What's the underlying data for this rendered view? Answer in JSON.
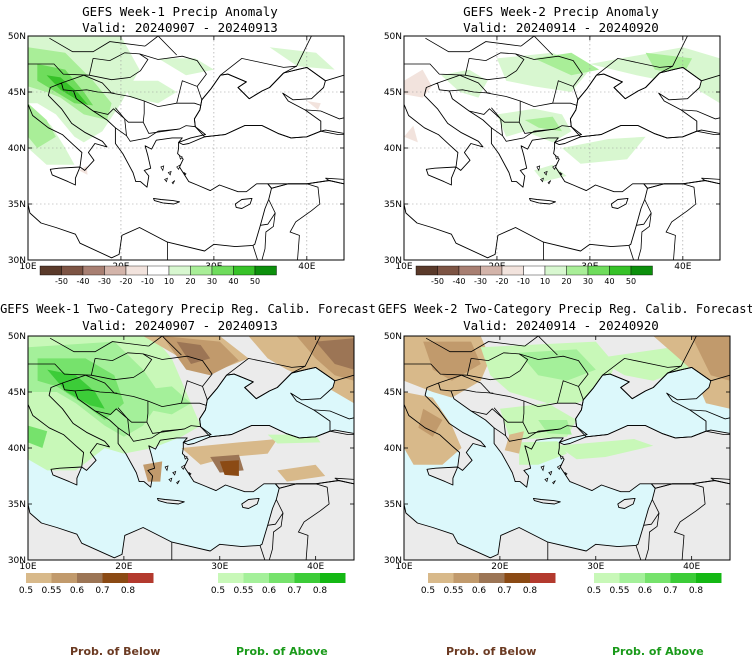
{
  "panels": [
    {
      "title": "GEFS Week-1 Precip Anomaly",
      "valid": "Valid: 20240907 - 20240913"
    },
    {
      "title": "GEFS Week-2 Precip Anomaly",
      "valid": "Valid: 20240914 - 20240920"
    },
    {
      "title": "GEFS Week-1 Two-Category Precip Reg. Calib. Forecast",
      "valid": "Valid: 20240907 - 20240913"
    },
    {
      "title": "GEFS Week-2 Two-Category Precip Reg. Calib. Forecast",
      "valid": "Valid: 20240914 - 20240920"
    }
  ],
  "axes": {
    "lat_labels": [
      "50N",
      "45N",
      "40N",
      "35N",
      "30N"
    ],
    "lon_labels": [
      "10E",
      "20E",
      "30E",
      "40E"
    ]
  },
  "anomaly_colorbar": {
    "labels": [
      "-50",
      "-40",
      "-30",
      "-20",
      "-10",
      "10",
      "20",
      "30",
      "40",
      "50"
    ],
    "colors": [
      "#5a3a2a",
      "#7d5444",
      "#a87f72",
      "#d3b4aa",
      "#f2e3dd",
      "#ffffff",
      "#d8f7d0",
      "#a9ee98",
      "#6fdc5c",
      "#37c228",
      "#0c8f0c"
    ]
  },
  "prob_colorbar": {
    "below_labels": [
      "0.5",
      "0.55",
      "0.6",
      "0.7",
      "0.8"
    ],
    "below_colors": [
      "#d8b98a",
      "#c19a6c",
      "#9c7555",
      "#8b4a14",
      "#b33a2e"
    ],
    "above_labels": [
      "0.5",
      "0.55",
      "0.6",
      "0.7",
      "0.8"
    ],
    "above_colors": [
      "#c8f8b8",
      "#a4f09a",
      "#76e26c",
      "#3ccc38",
      "#14b814"
    ]
  },
  "colors": {
    "sea": "#dcf8fb",
    "land_no_signal": "#ebebeb",
    "coast": "#000000",
    "below_text": "#6b3a22",
    "above_text": "#1a9a1a"
  },
  "footer": {
    "below_left": "Prob. of Below",
    "above_left": "Prob. of Above",
    "below_right": "Prob. of Below",
    "above_right": "Prob. of Above"
  }
}
